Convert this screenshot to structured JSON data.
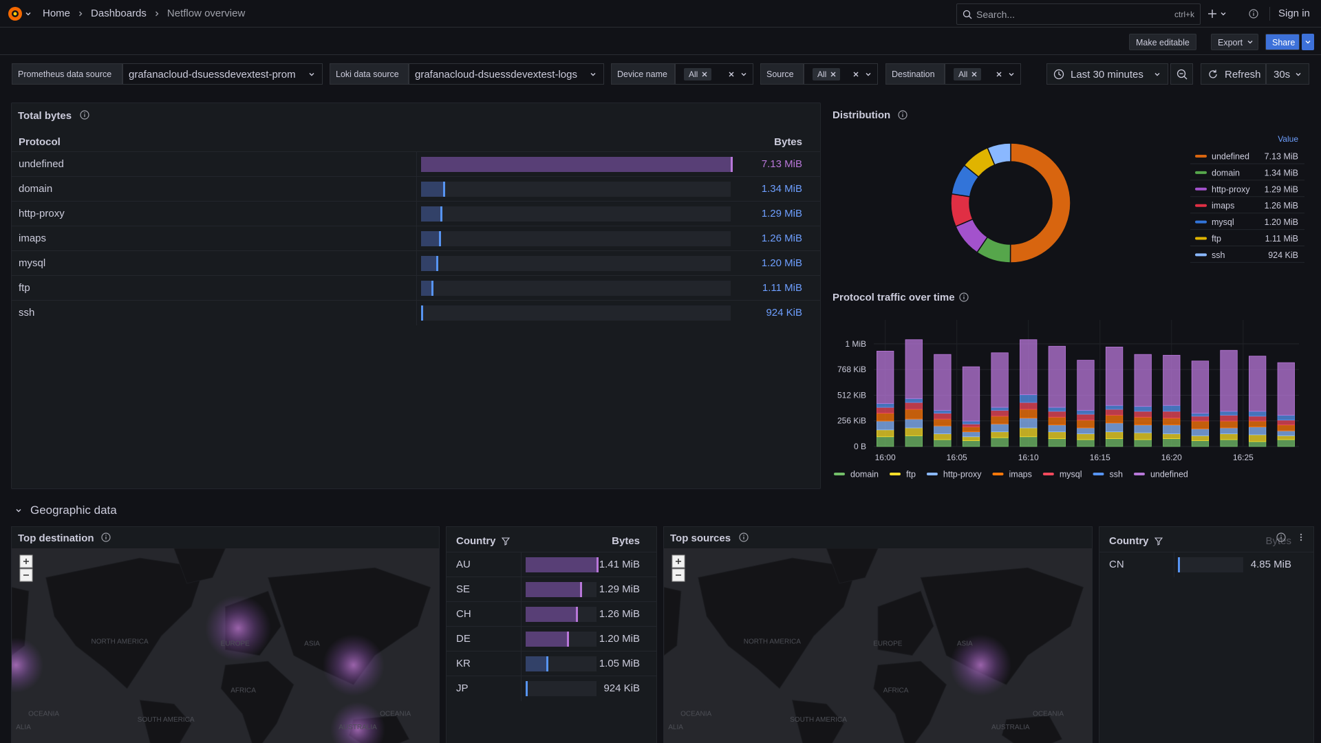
{
  "nav": {
    "breadcrumbs": [
      "Home",
      "Dashboards",
      "Netflow overview"
    ],
    "search": "Search...",
    "shortcut": "ctrl+k",
    "sign_in": "Sign in"
  },
  "toolbar": {
    "make_editable": "Make editable",
    "export": "Export",
    "share": "Share"
  },
  "variables": [
    {
      "label": "Prometheus data source",
      "value": "grafanacloud-dsuessdevextest-prom"
    },
    {
      "label": "Loki data source",
      "value": "grafanacloud-dsuessdevextest-logs"
    },
    {
      "label": "Device name",
      "value": "All"
    },
    {
      "label": "Source",
      "value": "All"
    },
    {
      "label": "Destination",
      "value": "All"
    }
  ],
  "time_picker": {
    "range": "Last 30 minutes",
    "refresh": "Refresh",
    "interval": "30s"
  },
  "total_bytes": {
    "title": "Total bytes",
    "columns": [
      "Protocol",
      "Bytes"
    ],
    "categories": [
      "undefined",
      "domain",
      "http-proxy",
      "imaps",
      "mysql",
      "ftp",
      "ssh"
    ],
    "values": [
      7476347,
      1405092,
      1352663,
      1321206,
      1258291,
      1163919,
      946176
    ],
    "value_labels": [
      "7.13 MiB",
      "1.34 MiB",
      "1.29 MiB",
      "1.26 MiB",
      "1.20 MiB",
      "1.11 MiB",
      "924 KiB"
    ]
  },
  "distribution": {
    "type": "pie",
    "title": "Distribution",
    "legend_header": "Value",
    "categories": [
      "undefined",
      "domain",
      "http-proxy",
      "imaps",
      "mysql",
      "ftp",
      "ssh"
    ],
    "values": [
      7476347,
      1405092,
      1352663,
      1321206,
      1258291,
      1163919,
      946176
    ],
    "value_labels": [
      "7.13 MiB",
      "1.34 MiB",
      "1.29 MiB",
      "1.26 MiB",
      "1.20 MiB",
      "1.11 MiB",
      "924 KiB"
    ],
    "colors": [
      "#d8650f",
      "#56a64b",
      "#a352cc",
      "#e02f44",
      "#3274d9",
      "#e0b400",
      "#8ab8ff"
    ]
  },
  "traffic": {
    "type": "bar",
    "stacked": true,
    "grid": true,
    "title": "Protocol traffic over time",
    "x": [
      960,
      962,
      964,
      966,
      968,
      970,
      972,
      974,
      976,
      978,
      980,
      982,
      984,
      986,
      988
    ],
    "xlim": [
      959.2,
      988.9
    ],
    "xticks": [
      {
        "value": 960,
        "label": "16:00"
      },
      {
        "value": 965,
        "label": "16:05"
      },
      {
        "value": 970,
        "label": "16:10"
      },
      {
        "value": 975,
        "label": "16:15"
      },
      {
        "value": 980,
        "label": "16:20"
      },
      {
        "value": 985,
        "label": "16:25"
      }
    ],
    "ylim": [
      0,
      1294000
    ],
    "yticks": [
      {
        "value": 0,
        "label": "0 B"
      },
      {
        "value": 262144,
        "label": "256 KiB"
      },
      {
        "value": 524288,
        "label": "512 KiB"
      },
      {
        "value": 786432,
        "label": "768 KiB"
      },
      {
        "value": 1048576,
        "label": "1 MiB"
      }
    ],
    "series": [
      {
        "name": "domain",
        "color": "#73bf69",
        "values": [
          100000,
          110000,
          70000,
          60000,
          90000,
          100000,
          80000,
          70000,
          80000,
          70000,
          80000,
          60000,
          70000,
          50000,
          70000
        ]
      },
      {
        "name": "ftp",
        "color": "#fade2a",
        "values": [
          70000,
          80000,
          60000,
          40000,
          60000,
          90000,
          70000,
          60000,
          70000,
          70000,
          50000,
          50000,
          60000,
          70000,
          40000
        ]
      },
      {
        "name": "http-proxy",
        "color": "#8ab8ff",
        "values": [
          90000,
          90000,
          80000,
          50000,
          80000,
          100000,
          70000,
          60000,
          90000,
          80000,
          90000,
          70000,
          60000,
          80000,
          50000
        ]
      },
      {
        "name": "imaps",
        "color": "#ff780a",
        "values": [
          80000,
          100000,
          70000,
          50000,
          80000,
          90000,
          80000,
          80000,
          80000,
          80000,
          70000,
          80000,
          70000,
          60000,
          60000
        ]
      },
      {
        "name": "mysql",
        "color": "#f2495c",
        "values": [
          60000,
          70000,
          60000,
          30000,
          60000,
          70000,
          60000,
          60000,
          60000,
          60000,
          70000,
          50000,
          60000,
          50000,
          50000
        ]
      },
      {
        "name": "ssh",
        "color": "#5794f2",
        "values": [
          40000,
          40000,
          30000,
          30000,
          30000,
          80000,
          40000,
          40000,
          40000,
          50000,
          60000,
          30000,
          40000,
          50000,
          50000
        ]
      },
      {
        "name": "undefined",
        "color": "#b877d9",
        "values": [
          535000,
          602000,
          571000,
          555000,
          558000,
          562000,
          625000,
          512000,
          597000,
          531000,
          513000,
          534000,
          623000,
          564000,
          537000
        ]
      }
    ]
  },
  "geo": {
    "title": "Geographic data",
    "top_destination": {
      "title": "Top destination",
      "map_labels": [
        "NORTH AMERICA",
        "EUROPE",
        "ASIA",
        "AFRICA",
        "OCEANIA",
        "SOUTH AMERICA",
        "OCEANIA",
        "AUSTRALIA",
        "ALIA"
      ]
    },
    "destination_table": {
      "columns": [
        "Country",
        "Bytes"
      ],
      "categories": [
        "AU",
        "SE",
        "CH",
        "DE",
        "KR",
        "JP"
      ],
      "values": [
        1478492,
        1352663,
        1321206,
        1258291,
        1101005,
        946176
      ],
      "value_labels": [
        "1.41 MiB",
        "1.29 MiB",
        "1.26 MiB",
        "1.20 MiB",
        "1.05 MiB",
        "924 KiB"
      ]
    },
    "top_sources": {
      "title": "Top sources",
      "map_labels": [
        "NORTH AMERICA",
        "EUROPE",
        "ASIA",
        "AFRICA",
        "OCEANIA",
        "SOUTH AMERICA",
        "OCEANIA",
        "AUSTRALIA",
        "ALIA"
      ]
    },
    "source_table": {
      "columns": [
        "Country",
        "Bytes"
      ],
      "categories": [
        "CN"
      ],
      "values": [
        5085594
      ],
      "value_labels": [
        "4.85 MiB"
      ]
    }
  }
}
